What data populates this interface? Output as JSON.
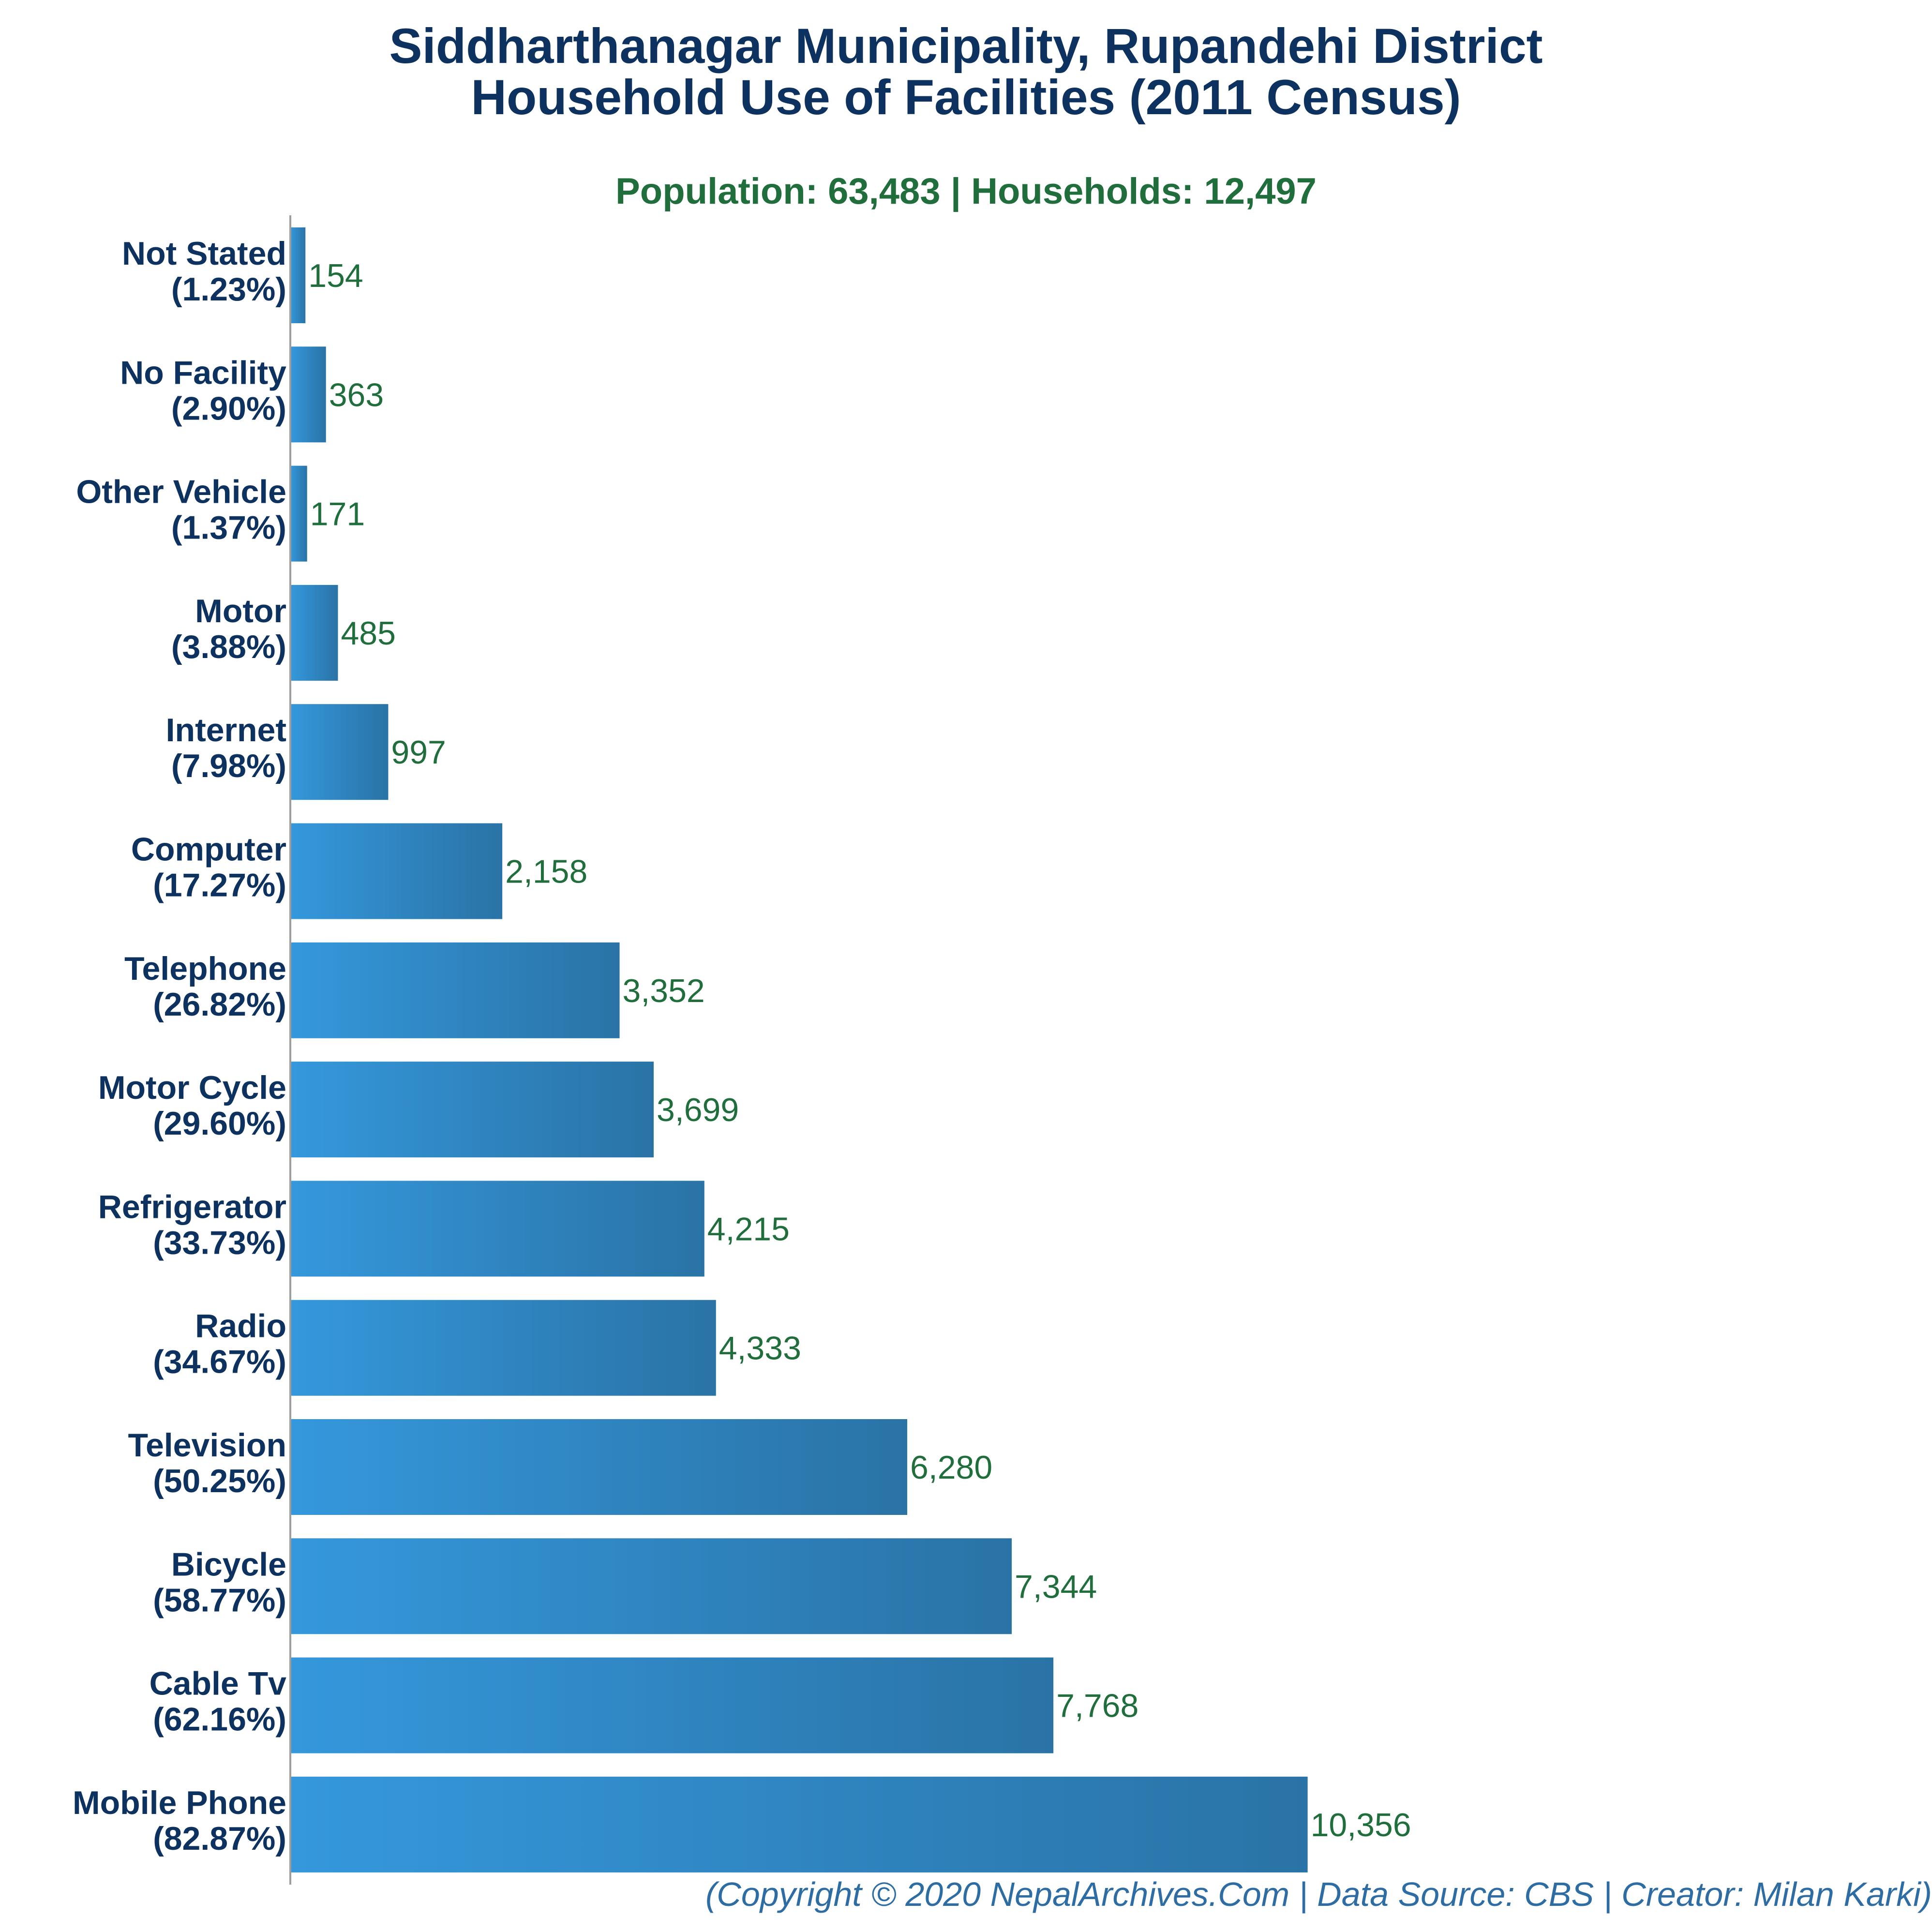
{
  "chart_data": {
    "type": "bar",
    "orientation": "horizontal",
    "title": [
      "Siddharthanagar Municipality, Rupandehi District",
      "Household Use of Facilities (2011 Census)"
    ],
    "subtitle": "Population: 63,483 | Households: 12,497",
    "categories": [
      {
        "name": "Not Stated",
        "percent": "(1.23%)"
      },
      {
        "name": "No Facility",
        "percent": "(2.90%)"
      },
      {
        "name": "Other Vehicle",
        "percent": "(1.37%)"
      },
      {
        "name": "Motor",
        "percent": "(3.88%)"
      },
      {
        "name": "Internet",
        "percent": "(7.98%)"
      },
      {
        "name": "Computer",
        "percent": "(17.27%)"
      },
      {
        "name": "Telephone",
        "percent": "(26.82%)"
      },
      {
        "name": "Motor Cycle",
        "percent": "(29.60%)"
      },
      {
        "name": "Refrigerator",
        "percent": "(33.73%)"
      },
      {
        "name": "Radio",
        "percent": "(34.67%)"
      },
      {
        "name": "Television",
        "percent": "(50.25%)"
      },
      {
        "name": "Bicycle",
        "percent": "(58.77%)"
      },
      {
        "name": "Cable Tv",
        "percent": "(62.16%)"
      },
      {
        "name": "Mobile Phone",
        "percent": "(82.87%)"
      }
    ],
    "values": [
      154,
      363,
      171,
      485,
      997,
      2158,
      3352,
      3699,
      4215,
      4333,
      6280,
      7344,
      7768,
      10356
    ],
    "value_labels": [
      "154",
      "363",
      "171",
      "485",
      "997",
      "2,158",
      "3,352",
      "3,699",
      "4,215",
      "4,333",
      "6,280",
      "7,344",
      "7,768",
      "10,356"
    ],
    "xlim": [
      0,
      16500
    ],
    "grid": false,
    "legend": "none",
    "colors": {
      "bar_light": "#3598dc",
      "bar_dark": "#2a73a6",
      "category_label": "#0d3260",
      "value_label": "#1f6e3c",
      "axis": "#9e9e9e"
    }
  },
  "footer": "(Copyright © 2020 NepalArchives.Com | Data Source: CBS | Creator: Milan Karki)"
}
